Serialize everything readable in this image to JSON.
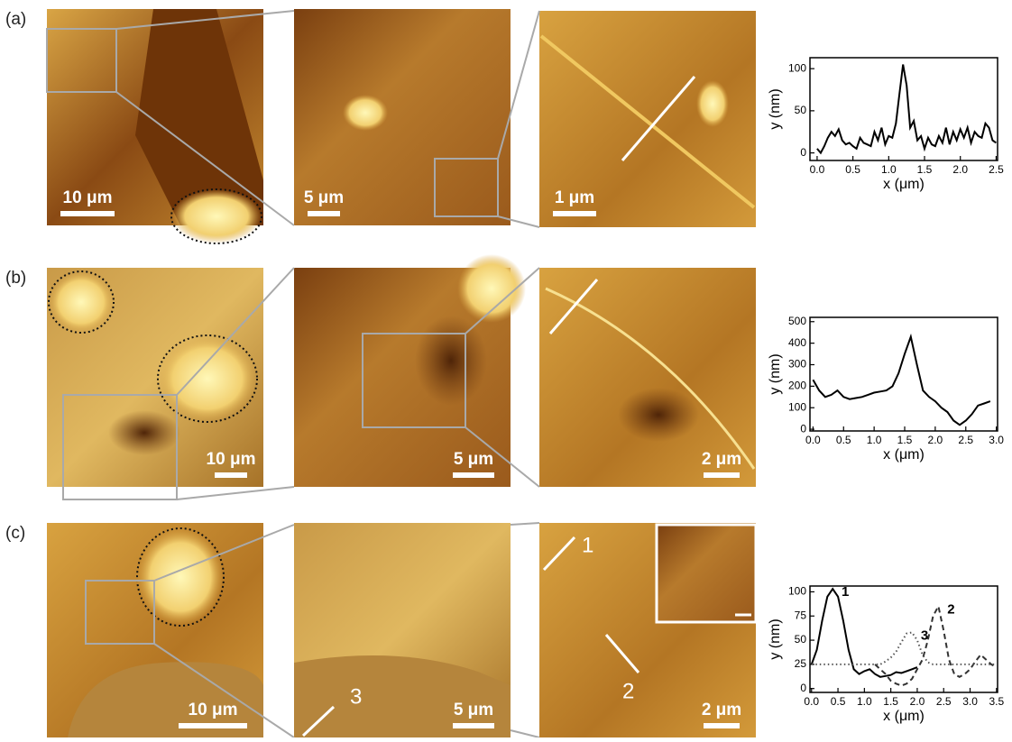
{
  "panels": [
    {
      "label": "(a)",
      "scale_bars": [
        "10 μm",
        "5 μm",
        "1 μm"
      ]
    },
    {
      "label": "(b)",
      "scale_bars": [
        "10 μm",
        "5 μm",
        "2 μm"
      ]
    },
    {
      "label": "(c)",
      "scale_bars": [
        "10 μm",
        "5 μm",
        "2 μm"
      ],
      "line_labels": [
        "1",
        "2",
        "3"
      ]
    }
  ],
  "chart_data": [
    {
      "type": "line",
      "xlabel": "x (μm)",
      "ylabel": "y (nm)",
      "color": "#000000",
      "x": [
        0,
        0.05,
        0.1,
        0.15,
        0.2,
        0.25,
        0.3,
        0.35,
        0.4,
        0.45,
        0.5,
        0.55,
        0.6,
        0.65,
        0.7,
        0.75,
        0.8,
        0.85,
        0.9,
        0.95,
        1.0,
        1.05,
        1.1,
        1.15,
        1.2,
        1.25,
        1.3,
        1.35,
        1.4,
        1.45,
        1.5,
        1.55,
        1.6,
        1.65,
        1.7,
        1.75,
        1.8,
        1.85,
        1.9,
        1.95,
        2.0,
        2.05,
        2.1,
        2.15,
        2.2,
        2.25,
        2.3,
        2.35,
        2.4,
        2.45,
        2.5
      ],
      "values": [
        5,
        0,
        8,
        18,
        25,
        20,
        28,
        15,
        10,
        12,
        8,
        5,
        18,
        12,
        10,
        8,
        25,
        15,
        30,
        10,
        20,
        18,
        35,
        70,
        105,
        80,
        30,
        38,
        15,
        20,
        5,
        18,
        10,
        8,
        20,
        12,
        30,
        10,
        25,
        15,
        28,
        18,
        30,
        12,
        25,
        20,
        18,
        35,
        30,
        15,
        12
      ],
      "xlim": [
        -0.1,
        2.52
      ],
      "ylim": [
        -9,
        113
      ],
      "xticks": [
        {
          "value": 0,
          "label": "0.0"
        },
        {
          "value": 0.5,
          "label": "0.5"
        },
        {
          "value": 1,
          "label": "1.0"
        },
        {
          "value": 1.5,
          "label": "1.5"
        },
        {
          "value": 2,
          "label": "2.0"
        },
        {
          "value": 2.5,
          "label": "2.5"
        }
      ],
      "yticks": [
        0,
        50,
        100
      ]
    },
    {
      "type": "line",
      "xlabel": "x (μm)",
      "ylabel": "y (nm)",
      "color": "#000000",
      "x": [
        0,
        0.1,
        0.2,
        0.3,
        0.4,
        0.5,
        0.6,
        0.7,
        0.8,
        0.9,
        1.0,
        1.1,
        1.2,
        1.3,
        1.4,
        1.5,
        1.6,
        1.7,
        1.8,
        1.9,
        2.0,
        2.1,
        2.2,
        2.3,
        2.4,
        2.5,
        2.6,
        2.7,
        2.8,
        2.9
      ],
      "values": [
        230,
        180,
        150,
        160,
        180,
        150,
        140,
        145,
        150,
        160,
        170,
        175,
        180,
        200,
        260,
        350,
        430,
        300,
        180,
        150,
        130,
        100,
        80,
        40,
        20,
        40,
        70,
        110,
        120,
        130
      ],
      "xlim": [
        -0.05,
        3.02
      ],
      "ylim": [
        -8,
        520
      ],
      "xticks": [
        {
          "value": 0,
          "label": "0.0"
        },
        {
          "value": 0.5,
          "label": "0.5"
        },
        {
          "value": 1,
          "label": "1.0"
        },
        {
          "value": 1.5,
          "label": "1.5"
        },
        {
          "value": 2,
          "label": "2.0"
        },
        {
          "value": 2.5,
          "label": "2.5"
        },
        {
          "value": 3,
          "label": "3.0"
        }
      ],
      "yticks": [
        0,
        100,
        200,
        300,
        400,
        500
      ]
    },
    {
      "type": "line",
      "xlabel": "x (μm)",
      "ylabel": "y (nm)",
      "x": [
        0,
        0.1,
        0.2,
        0.3,
        0.4,
        0.5,
        0.6,
        0.7,
        0.8,
        0.9,
        1.0,
        1.1,
        1.2,
        1.3,
        1.4,
        1.5,
        1.6,
        1.7,
        1.8,
        1.9,
        2.0,
        2.1,
        2.2,
        2.3,
        2.4,
        2.5,
        2.6,
        2.7,
        2.8,
        2.9,
        3.0,
        3.1,
        3.2,
        3.3,
        3.4,
        3.5
      ],
      "series": [
        {
          "name": "1",
          "color": "#000000",
          "dash": "solid",
          "values": [
            25,
            40,
            70,
            95,
            103,
            95,
            70,
            40,
            20,
            15,
            18,
            20,
            15,
            12,
            13,
            14,
            17,
            16,
            18,
            20,
            22,
            null,
            null,
            null,
            null,
            null,
            null,
            null,
            null,
            null,
            null,
            null,
            null,
            null,
            null,
            null
          ]
        },
        {
          "name": "2",
          "color": "#333333",
          "dash": "dashed",
          "values": [
            null,
            null,
            null,
            null,
            null,
            null,
            null,
            null,
            null,
            null,
            null,
            null,
            25,
            20,
            15,
            8,
            5,
            3,
            5,
            10,
            20,
            30,
            50,
            75,
            85,
            60,
            30,
            15,
            12,
            15,
            20,
            28,
            35,
            30,
            25,
            22
          ]
        },
        {
          "name": "3",
          "color": "#555555",
          "dash": "dotted",
          "values": [
            25,
            25,
            25,
            25,
            25,
            25,
            25,
            25,
            25,
            25,
            25,
            25,
            25,
            25,
            28,
            32,
            38,
            48,
            57,
            58,
            50,
            35,
            27,
            25,
            25,
            25,
            25,
            25,
            25,
            25,
            25,
            25,
            25,
            25,
            25,
            25
          ]
        }
      ],
      "xlim": [
        -0.03,
        3.52
      ],
      "ylim": [
        -4,
        106
      ],
      "xticks": [
        {
          "value": 0,
          "label": "0.0"
        },
        {
          "value": 0.5,
          "label": "0.5"
        },
        {
          "value": 1,
          "label": "1.0"
        },
        {
          "value": 1.5,
          "label": "1.5"
        },
        {
          "value": 2,
          "label": "2.0"
        },
        {
          "value": 2.5,
          "label": "2.5"
        },
        {
          "value": 3,
          "label": "3.0"
        },
        {
          "value": 3.5,
          "label": "3.5"
        }
      ],
      "yticks": [
        0,
        25,
        50,
        75,
        100
      ]
    }
  ]
}
